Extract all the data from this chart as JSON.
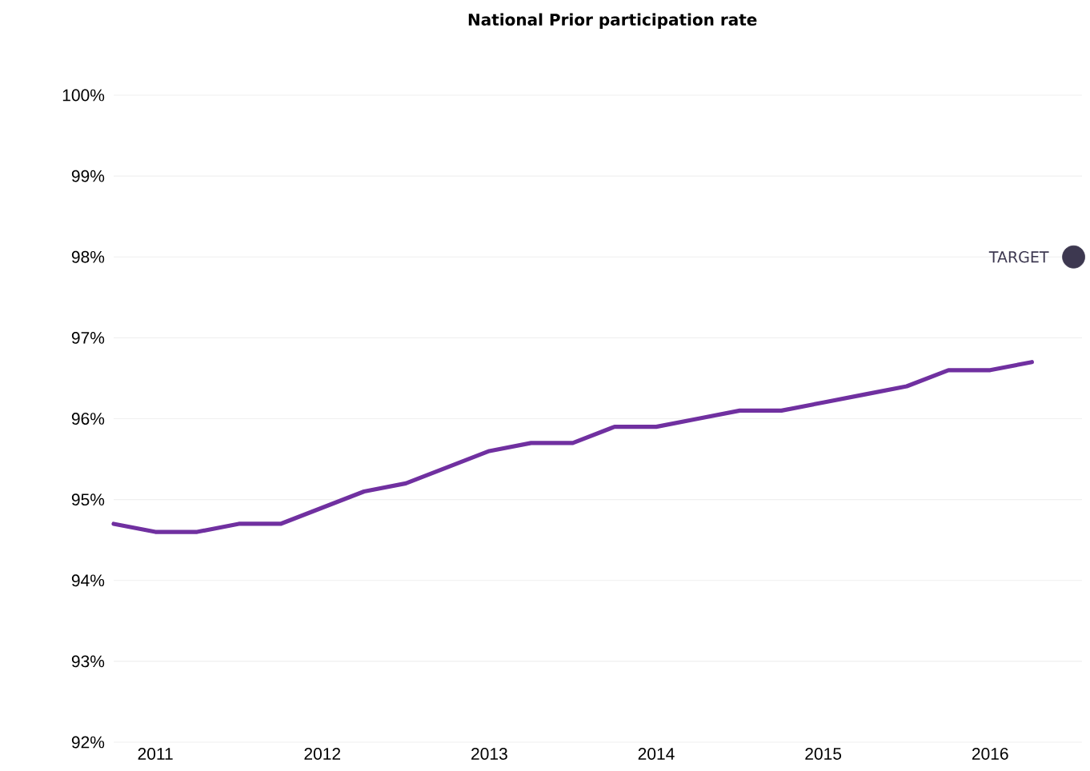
{
  "chart_data": {
    "type": "line",
    "title": "National Prior participation rate",
    "xlim": [
      2010.75,
      2016.55
    ],
    "xticks": [
      2011,
      2012,
      2013,
      2014,
      2015,
      2016
    ],
    "ylim": [
      92,
      100
    ],
    "yticks": [
      {
        "value": 92,
        "label": "92%"
      },
      {
        "value": 93,
        "label": "93%"
      },
      {
        "value": 94,
        "label": "94%"
      },
      {
        "value": 95,
        "label": "95%"
      },
      {
        "value": 96,
        "label": "96%"
      },
      {
        "value": 97,
        "label": "97%"
      },
      {
        "value": 98,
        "label": "98%"
      },
      {
        "value": 99,
        "label": "99%"
      },
      {
        "value": 100,
        "label": "100%"
      }
    ],
    "grid": "y",
    "legend": "right",
    "series": [
      {
        "color": "#7030a0",
        "marker": "none",
        "x": [
          2010.75,
          2011,
          2011.25,
          2011.5,
          2011.75,
          2012,
          2012.25,
          2012.5,
          2012.75,
          2013,
          2013.25,
          2013.5,
          2013.75,
          2014,
          2014.25,
          2014.5,
          2014.75,
          2015,
          2015.25,
          2015.5,
          2015.75,
          2016,
          2016.25
        ],
        "values": [
          94.7,
          94.6,
          94.6,
          94.7,
          94.7,
          94.9,
          95.1,
          95.2,
          95.4,
          95.6,
          95.7,
          95.7,
          95.9,
          95.9,
          96.0,
          96.1,
          96.1,
          96.2,
          96.3,
          96.4,
          96.6,
          96.6,
          96.7
        ]
      },
      {
        "type": "scatter",
        "name": "TARGET",
        "color": "#3d3850",
        "marker": "circle",
        "x": [
          2016.5
        ],
        "values": [
          98
        ]
      }
    ]
  }
}
